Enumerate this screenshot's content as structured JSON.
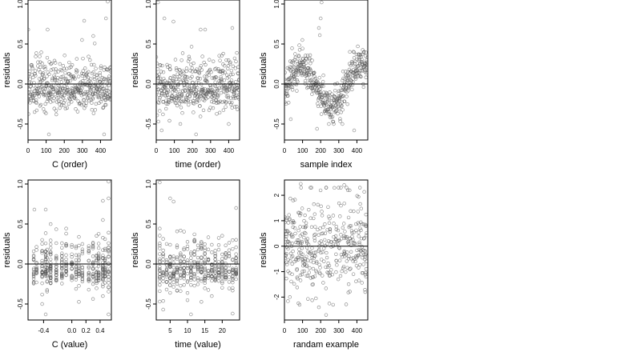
{
  "chart_data": [
    {
      "type": "scatter",
      "xlabel": "C (order)",
      "ylabel": "residuals",
      "xlim": [
        0,
        460
      ],
      "ylim": [
        -0.7,
        1.05
      ],
      "xticks": [
        0,
        100,
        200,
        300,
        400
      ],
      "yticks": [
        -0.5,
        0.0,
        0.5,
        1.0
      ],
      "ytick_labels": [
        "-0.5",
        "0.0",
        "0.5",
        "1.0"
      ],
      "hline": 0,
      "seed": 11,
      "pattern": "noise",
      "n": 460,
      "points": [
        [
          1,
          0.68
        ],
        [
          440,
          1.03
        ],
        [
          430,
          0.82
        ],
        [
          310,
          0.79
        ],
        [
          115,
          -0.63
        ],
        [
          420,
          -0.63
        ],
        [
          108,
          0.68
        ],
        [
          360,
          0.6
        ],
        [
          48,
          -0.33
        ]
      ]
    },
    {
      "type": "scatter",
      "xlabel": "time (order)",
      "ylabel": "residuals",
      "xlim": [
        0,
        460
      ],
      "ylim": [
        -0.7,
        1.05
      ],
      "xticks": [
        0,
        100,
        200,
        300,
        400
      ],
      "yticks": [
        -0.5,
        0.0,
        0.5,
        1.0
      ],
      "ytick_labels": [
        "-0.5",
        "0.0",
        "0.5",
        "1.0"
      ],
      "hline": 0,
      "seed": 23,
      "pattern": "noise",
      "n": 460,
      "points": [
        [
          10,
          1.02
        ],
        [
          45,
          0.82
        ],
        [
          95,
          0.78
        ],
        [
          245,
          0.68
        ],
        [
          270,
          0.68
        ],
        [
          420,
          0.7
        ],
        [
          12,
          -0.47
        ],
        [
          30,
          -0.58
        ],
        [
          220,
          -0.63
        ],
        [
          400,
          -0.5
        ]
      ]
    },
    {
      "type": "scatter",
      "xlabel": "sample index",
      "ylabel": "residuals",
      "xlim": [
        0,
        460
      ],
      "ylim": [
        -0.7,
        1.05
      ],
      "xticks": [
        0,
        100,
        200,
        300,
        400
      ],
      "yticks": [
        -0.5,
        0.0,
        0.5,
        1.0
      ],
      "ytick_labels": [
        "-0.5",
        "0.0",
        "0.5",
        "1.0"
      ],
      "hline": 0,
      "seed": 37,
      "pattern": "wave",
      "n": 460,
      "points": [
        [
          205,
          1.02
        ],
        [
          200,
          0.82
        ],
        [
          190,
          0.7
        ],
        [
          195,
          0.61
        ],
        [
          180,
          -0.56
        ],
        [
          385,
          -0.58
        ],
        [
          35,
          -0.44
        ],
        [
          320,
          -0.5
        ]
      ]
    },
    {
      "type": "scatter",
      "xlabel": "C (value)",
      "ylabel": "residuals",
      "xlim": [
        -0.62,
        0.56
      ],
      "ylim": [
        -0.7,
        1.05
      ],
      "xticks": [
        -0.4,
        0.0,
        0.2,
        0.4
      ],
      "xtick_labels": [
        "-0.4",
        "0.0",
        "0.2",
        "0.4"
      ],
      "yticks": [
        -0.5,
        0.0,
        0.5,
        1.0
      ],
      "ytick_labels": [
        "-0.5",
        "0.0",
        "0.5",
        "1.0"
      ],
      "hline": 0,
      "seed": 41,
      "pattern": "columns",
      "columns": [
        -0.54,
        -0.5,
        -0.42,
        -0.37,
        -0.35,
        -0.3,
        -0.22,
        -0.14,
        -0.08,
        0.0,
        0.06,
        0.1,
        0.15,
        0.24,
        0.3,
        0.35,
        0.38,
        0.44,
        0.47,
        0.52
      ],
      "n": 420,
      "points": [
        [
          0.52,
          1.03
        ],
        [
          0.52,
          0.82
        ],
        [
          0.44,
          0.79
        ],
        [
          -0.53,
          0.68
        ],
        [
          -0.37,
          0.68
        ],
        [
          -0.37,
          -0.63
        ],
        [
          0.52,
          -0.63
        ]
      ]
    },
    {
      "type": "scatter",
      "xlabel": "time (value)",
      "ylabel": "residuals",
      "xlim": [
        1,
        25
      ],
      "ylim": [
        -0.7,
        1.05
      ],
      "xticks": [
        5,
        10,
        15,
        20
      ],
      "yticks": [
        -0.5,
        0.0,
        0.5,
        1.0
      ],
      "ytick_labels": [
        "-0.5",
        "0.0",
        "0.5",
        "1.0"
      ],
      "hline": 0,
      "seed": 53,
      "pattern": "columns",
      "columns": [
        2,
        3,
        4,
        5,
        6,
        7,
        8,
        9,
        10,
        11,
        12,
        13,
        14,
        15,
        16,
        17,
        18,
        19,
        20,
        21,
        22,
        23,
        24
      ],
      "n": 420,
      "points": [
        [
          2,
          1.02
        ],
        [
          5,
          0.82
        ],
        [
          6,
          0.78
        ],
        [
          24,
          0.7
        ],
        [
          2,
          -0.47
        ],
        [
          3,
          -0.57
        ],
        [
          11,
          -0.63
        ],
        [
          23,
          -0.62
        ]
      ]
    },
    {
      "type": "scatter",
      "xlabel": "randam example",
      "ylabel": "residuals",
      "xlim": [
        0,
        460
      ],
      "ylim": [
        -2.9,
        2.6
      ],
      "xticks": [
        0,
        100,
        200,
        300,
        400
      ],
      "yticks": [
        -2,
        -1,
        0,
        1,
        2
      ],
      "hline": 0,
      "seed": 67,
      "pattern": "random",
      "n": 400,
      "points": [
        [
          90,
          2.45
        ],
        [
          330,
          2.4
        ],
        [
          350,
          2.2
        ],
        [
          190,
          -2.4
        ],
        [
          230,
          -2.7
        ],
        [
          30,
          -2.0
        ]
      ]
    }
  ]
}
